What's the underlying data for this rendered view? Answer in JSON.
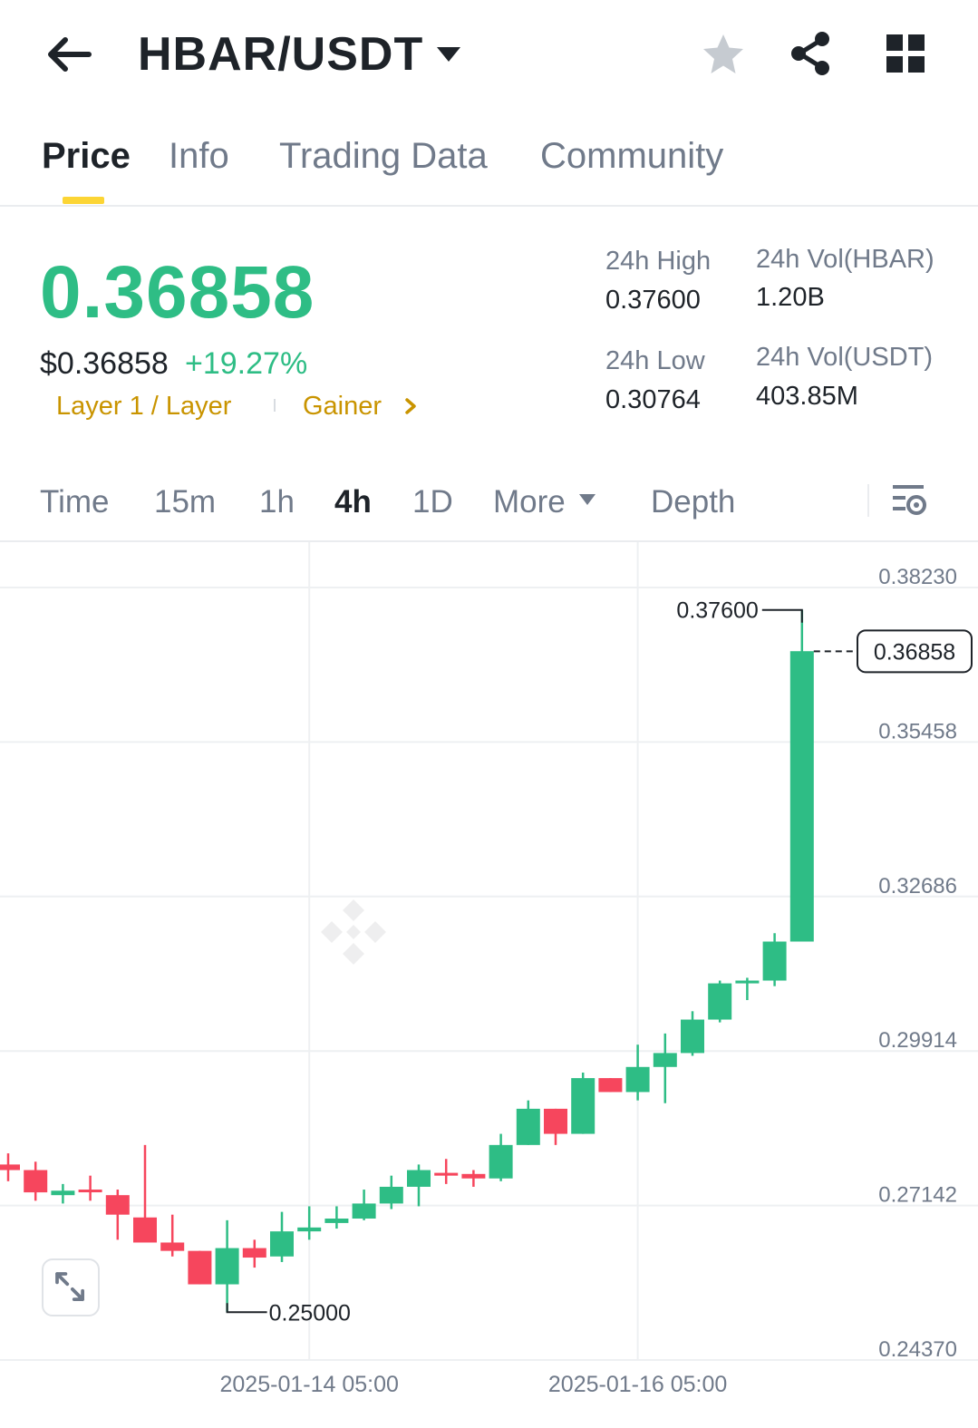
{
  "header": {
    "pair": "HBAR/USDT",
    "icons": [
      "arrow-left-icon",
      "caret-down-icon",
      "star-icon",
      "share-icon",
      "grid-icon"
    ]
  },
  "tabs": [
    {
      "label": "Price",
      "active": true
    },
    {
      "label": "Info",
      "active": false
    },
    {
      "label": "Trading Data",
      "active": false
    },
    {
      "label": "Community",
      "active": false
    }
  ],
  "price": {
    "last": "0.36858",
    "usd": "$0.36858",
    "change": "+19.27%",
    "tags": [
      "Layer 1 / Layer",
      "Gainer"
    ]
  },
  "stats": {
    "high_label": "24h High",
    "high_value": "0.37600",
    "low_label": "24h Low",
    "low_value": "0.30764",
    "vol_base_label": "24h Vol(HBAR)",
    "vol_base_value": "1.20B",
    "vol_quote_label": "24h Vol(USDT)",
    "vol_quote_value": "403.85M"
  },
  "toolbar": {
    "items": [
      "Time",
      "15m",
      "1h",
      "4h",
      "1D",
      "More",
      "Depth"
    ],
    "active": "4h"
  },
  "colors": {
    "up": "#2ebd85",
    "down": "#f6465d",
    "accent": "#fcd535",
    "text": "#1e2329",
    "muted": "#707a8a"
  },
  "chart_data": {
    "type": "candlestick",
    "interval": "4h",
    "y_ticks": [
      "0.38230",
      "0.35458",
      "0.32686",
      "0.29914",
      "0.27142",
      "0.24370"
    ],
    "ylim": [
      0.2437,
      0.3823
    ],
    "x_ticks": [
      "2025-01-14 05:00",
      "2025-01-16 05:00"
    ],
    "current_price": "0.36858",
    "high_marker": "0.37600",
    "low_marker": "0.25000",
    "candles": [
      {
        "o": 0.2765,
        "h": 0.2785,
        "l": 0.2735,
        "c": 0.2755
      },
      {
        "o": 0.2755,
        "h": 0.277,
        "l": 0.27,
        "c": 0.2715
      },
      {
        "o": 0.271,
        "h": 0.273,
        "l": 0.2695,
        "c": 0.2718
      },
      {
        "o": 0.272,
        "h": 0.2745,
        "l": 0.27,
        "c": 0.2718
      },
      {
        "o": 0.271,
        "h": 0.272,
        "l": 0.263,
        "c": 0.2675
      },
      {
        "o": 0.267,
        "h": 0.28,
        "l": 0.2635,
        "c": 0.2625
      },
      {
        "o": 0.2625,
        "h": 0.2675,
        "l": 0.26,
        "c": 0.261
      },
      {
        "o": 0.261,
        "h": 0.261,
        "l": 0.255,
        "c": 0.255
      },
      {
        "o": 0.255,
        "h": 0.2665,
        "l": 0.25,
        "c": 0.2615
      },
      {
        "o": 0.2615,
        "h": 0.263,
        "l": 0.258,
        "c": 0.2598
      },
      {
        "o": 0.26,
        "h": 0.268,
        "l": 0.259,
        "c": 0.2645
      },
      {
        "o": 0.2645,
        "h": 0.269,
        "l": 0.263,
        "c": 0.2652
      },
      {
        "o": 0.266,
        "h": 0.269,
        "l": 0.265,
        "c": 0.2668
      },
      {
        "o": 0.2668,
        "h": 0.272,
        "l": 0.2665,
        "c": 0.2695
      },
      {
        "o": 0.2695,
        "h": 0.2745,
        "l": 0.2685,
        "c": 0.2725
      },
      {
        "o": 0.2725,
        "h": 0.2765,
        "l": 0.269,
        "c": 0.2755
      },
      {
        "o": 0.275,
        "h": 0.2775,
        "l": 0.273,
        "c": 0.2745
      },
      {
        "o": 0.2748,
        "h": 0.2755,
        "l": 0.2725,
        "c": 0.274
      },
      {
        "o": 0.274,
        "h": 0.282,
        "l": 0.2735,
        "c": 0.28
      },
      {
        "o": 0.28,
        "h": 0.288,
        "l": 0.28,
        "c": 0.2865
      },
      {
        "o": 0.2865,
        "h": 0.2865,
        "l": 0.28,
        "c": 0.282
      },
      {
        "o": 0.282,
        "h": 0.293,
        "l": 0.282,
        "c": 0.292
      },
      {
        "o": 0.292,
        "h": 0.292,
        "l": 0.2895,
        "c": 0.2895
      },
      {
        "o": 0.2895,
        "h": 0.298,
        "l": 0.288,
        "c": 0.294
      },
      {
        "o": 0.294,
        "h": 0.3,
        "l": 0.2875,
        "c": 0.2965
      },
      {
        "o": 0.2965,
        "h": 0.304,
        "l": 0.296,
        "c": 0.3025
      },
      {
        "o": 0.3025,
        "h": 0.3095,
        "l": 0.302,
        "c": 0.309
      },
      {
        "o": 0.309,
        "h": 0.31,
        "l": 0.306,
        "c": 0.3095
      },
      {
        "o": 0.3095,
        "h": 0.318,
        "l": 0.3085,
        "c": 0.3165
      },
      {
        "o": 0.3165,
        "h": 0.376,
        "l": 0.317,
        "c": 0.3686
      }
    ]
  }
}
